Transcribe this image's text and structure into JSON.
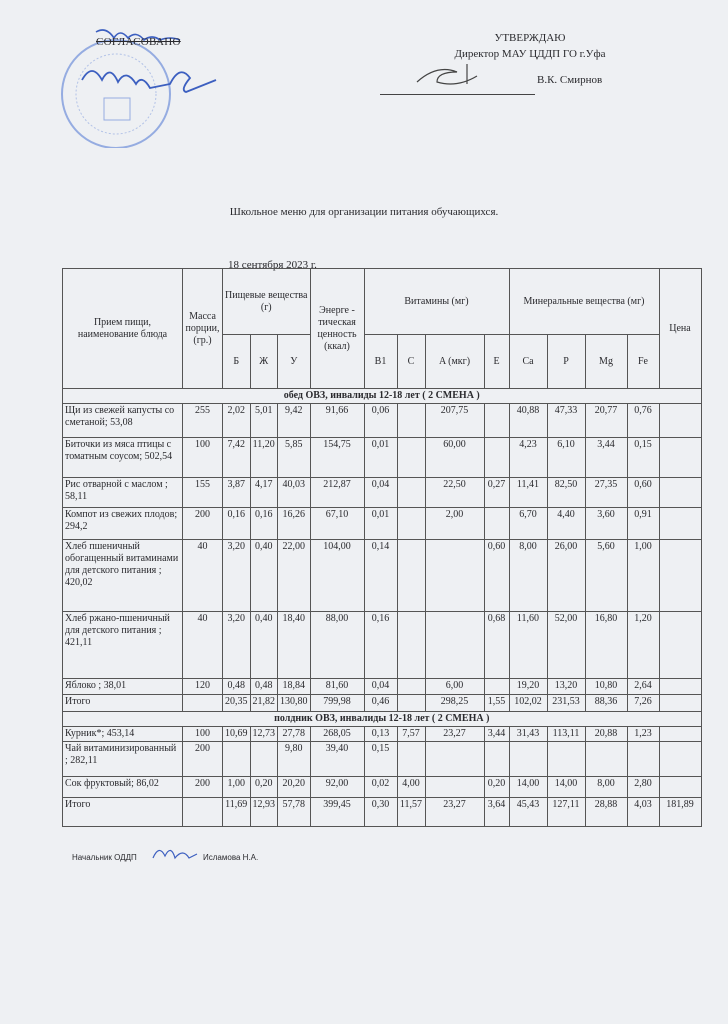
{
  "header": {
    "agreed_label": "СОГЛАСОВАНО",
    "approve_label": "УТВЕРЖДАЮ",
    "approver_position": "Директор МАУ ЦДДП ГО г.Уфа",
    "approver_name": "В.К. Смирнов",
    "stamp_color": "#4a6fc4"
  },
  "document": {
    "title": "Школьное меню для организации питания обучающихся.",
    "date": "18 сентября 2023 г."
  },
  "table": {
    "headers": {
      "dish": "Прием пищи, наименование блюда",
      "mass": "Масса порции, (гр.)",
      "nutrients": "Пищевые вещества (г)",
      "energy": "Энерге - тическая ценность (ккал)",
      "vitamins": "Витамины (мг)",
      "minerals": "Минеральные вещества (мг)",
      "price": "Цена",
      "sub": [
        "Б",
        "Ж",
        "У",
        "B1",
        "C",
        "A (мкг)",
        "E",
        "Ca",
        "P",
        "Mg",
        "Fe"
      ]
    },
    "sections": [
      {
        "title": "обед ОВЗ, инвалиды 12-18 лет ( 2 СМЕНА )",
        "rows": [
          {
            "name": "Щи из свежей капусты со сметаной; 53,08",
            "values": [
              "255",
              "2,02",
              "5,01",
              "9,42",
              "91,66",
              "0,06",
              "",
              "207,75",
              "",
              "40,88",
              "47,33",
              "20,77",
              "0,76",
              ""
            ]
          },
          {
            "name": "Биточки из мяса птицы  с томатным соусом; 502,54",
            "values": [
              "100",
              "7,42",
              "11,20",
              "5,85",
              "154,75",
              "0,01",
              "",
              "60,00",
              "",
              "4,23",
              "6,10",
              "3,44",
              "0,15",
              ""
            ]
          },
          {
            "name": "Рис отварной с маслом ; 58,11",
            "values": [
              "155",
              "3,87",
              "4,17",
              "40,03",
              "212,87",
              "0,04",
              "",
              "22,50",
              "0,27",
              "11,41",
              "82,50",
              "27,35",
              "0,60",
              ""
            ]
          },
          {
            "name": "Компот из свежих плодов; 294,2",
            "values": [
              "200",
              "0,16",
              "0,16",
              "16,26",
              "67,10",
              "0,01",
              "",
              "2,00",
              "",
              "6,70",
              "4,40",
              "3,60",
              "0,91",
              ""
            ]
          },
          {
            "name": "Хлеб пшеничный обогащенный витаминами для детского питания ; 420,02",
            "values": [
              "40",
              "3,20",
              "0,40",
              "22,00",
              "104,00",
              "0,14",
              "",
              "",
              "0,60",
              "8,00",
              "26,00",
              "5,60",
              "1,00",
              ""
            ]
          },
          {
            "name": "Хлеб ржано-пшеничный для детского питания ; 421,11",
            "values": [
              "40",
              "3,20",
              "0,40",
              "18,40",
              "88,00",
              "0,16",
              "",
              "",
              "0,68",
              "11,60",
              "52,00",
              "16,80",
              "1,20",
              ""
            ]
          },
          {
            "name": "Яблоко ; 38,01",
            "values": [
              "120",
              "0,48",
              "0,48",
              "18,84",
              "81,60",
              "0,04",
              "",
              "6,00",
              "",
              "19,20",
              "13,20",
              "10,80",
              "2,64",
              ""
            ]
          },
          {
            "name": "Итого",
            "values": [
              "",
              "20,35",
              "21,82",
              "130,80",
              "799,98",
              "0,46",
              "",
              "298,25",
              "1,55",
              "102,02",
              "231,53",
              "88,36",
              "7,26",
              ""
            ]
          }
        ]
      },
      {
        "title": "полдник ОВЗ, инвалиды 12-18 лет ( 2 СМЕНА )",
        "rows": [
          {
            "name": "Курник*; 453,14",
            "values": [
              "100",
              "10,69",
              "12,73",
              "27,78",
              "268,05",
              "0,13",
              "7,57",
              "23,27",
              "3,44",
              "31,43",
              "113,11",
              "20,88",
              "1,23",
              ""
            ]
          },
          {
            "name": "Чай витаминизированный ; 282,11",
            "values": [
              "200",
              "",
              "",
              "9,80",
              "39,40",
              "0,15",
              "",
              "",
              "",
              "",
              "",
              "",
              "",
              ""
            ]
          },
          {
            "name": "Сок фруктовый; 86,02",
            "values": [
              "200",
              "1,00",
              "0,20",
              "20,20",
              "92,00",
              "0,02",
              "4,00",
              "",
              "0,20",
              "14,00",
              "14,00",
              "8,00",
              "2,80",
              ""
            ]
          },
          {
            "name": "Итого",
            "values": [
              "",
              "11,69",
              "12,93",
              "57,78",
              "399,45",
              "0,30",
              "11,57",
              "23,27",
              "3,64",
              "45,43",
              "127,11",
              "28,88",
              "4,03",
              "181,89"
            ]
          }
        ]
      }
    ]
  },
  "footer": {
    "position": "Начальник ОДДП",
    "name": "Исламова Н.А."
  }
}
